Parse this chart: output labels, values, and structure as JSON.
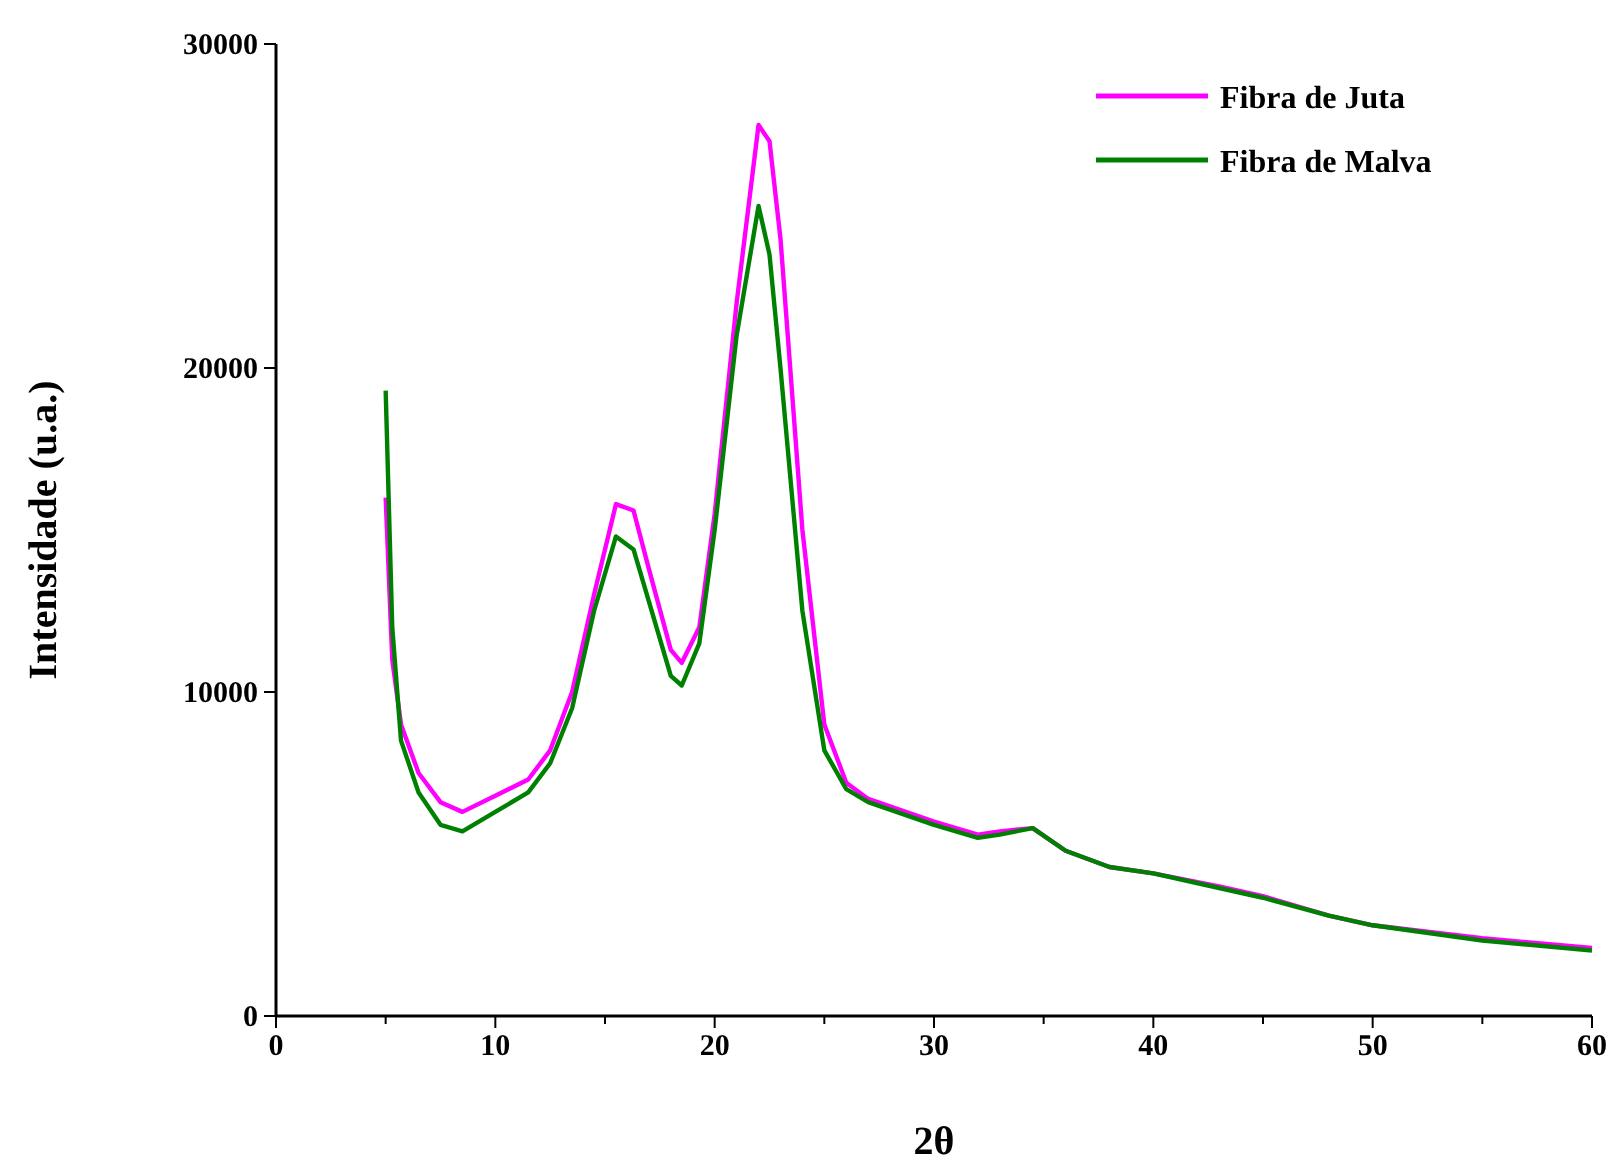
{
  "chart_data": {
    "type": "line",
    "xlabel": "2θ",
    "ylabel": "Intensidade (u.a.)",
    "xlim": [
      0,
      60
    ],
    "ylim": [
      0,
      30000
    ],
    "xticks": [
      0,
      {
        "value": 5,
        "label": null
      },
      10,
      {
        "value": 15,
        "label": null
      },
      20,
      {
        "value": 25,
        "label": null
      },
      30,
      {
        "value": 35,
        "label": null
      },
      40,
      {
        "value": 45,
        "label": null
      },
      50,
      {
        "value": 55,
        "label": null
      },
      60
    ],
    "yticks": [
      0,
      10000,
      20000,
      30000
    ],
    "grid": false,
    "legend": "top right",
    "marker": "none",
    "line_style": "solid",
    "series": [
      {
        "name": "Fibra de Juta",
        "color": "#ff00ff",
        "x": [
          5,
          5.3,
          5.7,
          6.5,
          7.5,
          8.5,
          10,
          11.5,
          12.5,
          13.5,
          14.5,
          15.5,
          16.3,
          17,
          18,
          18.5,
          19.3,
          20,
          21,
          22,
          22.5,
          23,
          24,
          25,
          26,
          27,
          30,
          32,
          33,
          34.5,
          36,
          38,
          40,
          43,
          45,
          48,
          50,
          55,
          60
        ],
        "values": [
          16000,
          11000,
          9000,
          7500,
          6600,
          6300,
          6800,
          7300,
          8200,
          10000,
          13000,
          15800,
          15600,
          13800,
          11300,
          10900,
          12000,
          15500,
          22000,
          27500,
          27000,
          24000,
          15000,
          9000,
          7200,
          6700,
          6000,
          5600,
          5700,
          5800,
          5100,
          4600,
          4400,
          4000,
          3700,
          3100,
          2800,
          2400,
          2100
        ]
      },
      {
        "name": "Fibra de Malva",
        "color": "#008000",
        "x": [
          5,
          5.3,
          5.7,
          6.5,
          7.5,
          8.5,
          10,
          11.5,
          12.5,
          13.5,
          14.5,
          15.5,
          16.3,
          17,
          18,
          18.5,
          19.3,
          20,
          21,
          22,
          22.5,
          23,
          24,
          25,
          26,
          27,
          30,
          32,
          33,
          34.5,
          36,
          38,
          40,
          43,
          45,
          48,
          50,
          55,
          60
        ],
        "values": [
          19300,
          12000,
          8500,
          6900,
          5900,
          5700,
          6300,
          6900,
          7800,
          9500,
          12500,
          14800,
          14400,
          12800,
          10500,
          10200,
          11500,
          15000,
          21000,
          25000,
          23500,
          20000,
          12500,
          8200,
          7000,
          6600,
          5900,
          5500,
          5600,
          5800,
          5100,
          4600,
          4400,
          3950,
          3650,
          3100,
          2800,
          2330,
          2020
        ]
      }
    ]
  }
}
